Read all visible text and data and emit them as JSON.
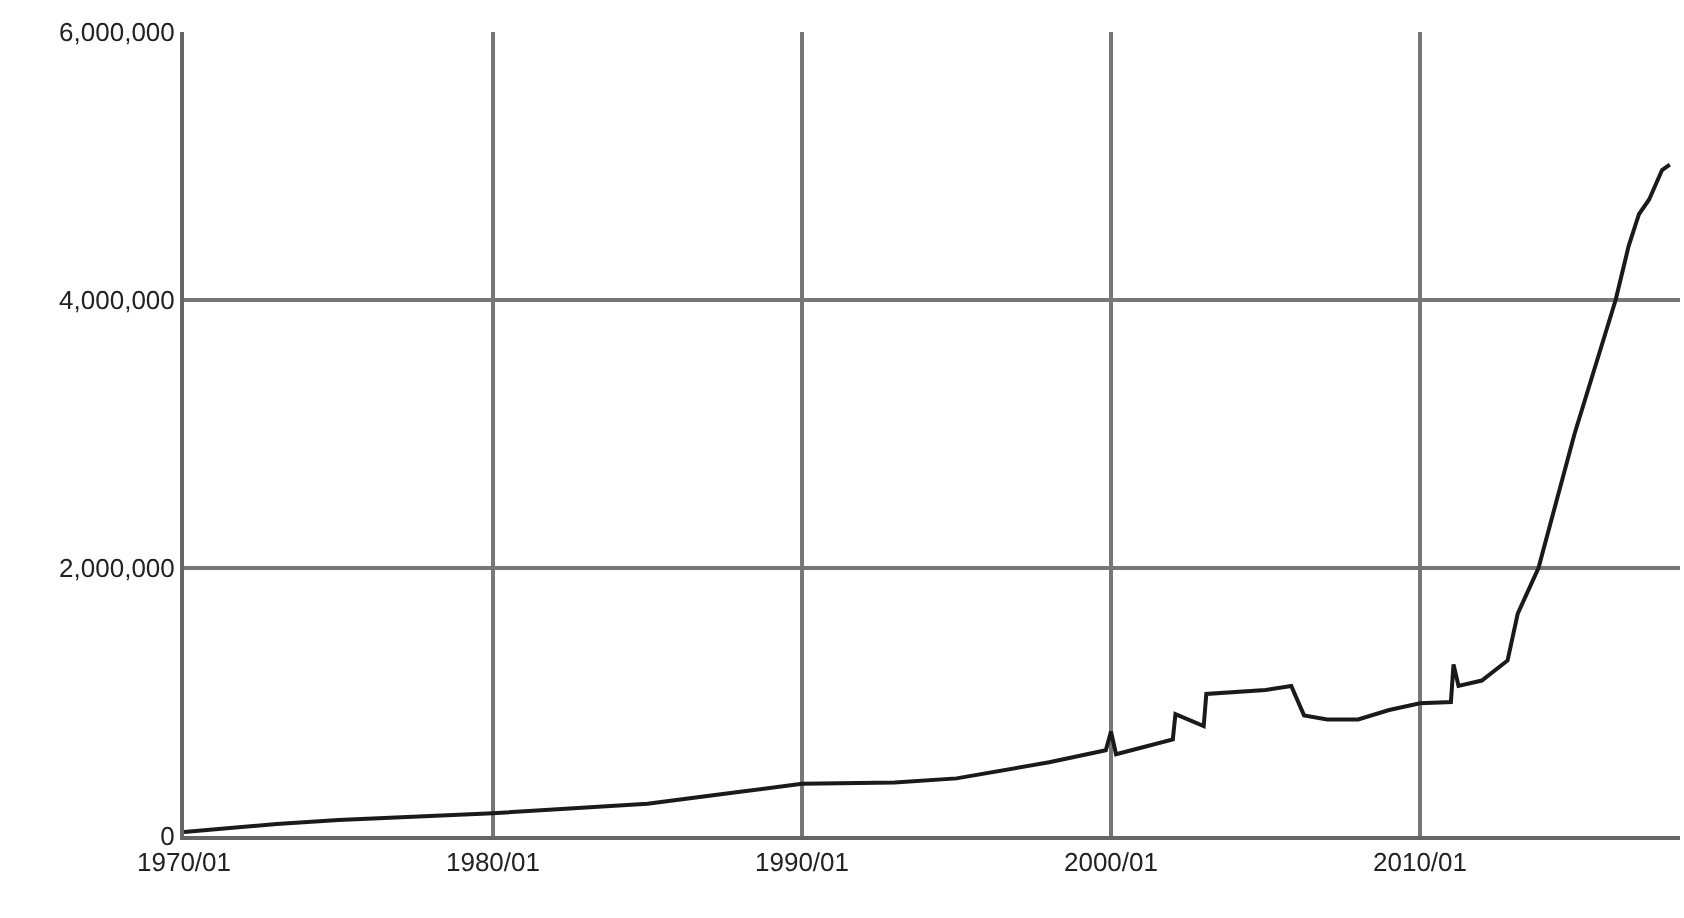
{
  "chart_data": {
    "type": "line",
    "x": [
      "1970-01",
      "1973-01",
      "1975-01",
      "1980-01",
      "1985-01",
      "1988-01",
      "1990-01",
      "1993-01",
      "1995-01",
      "1998-01",
      "1999-11",
      "2000-01",
      "2000-03",
      "2001-01",
      "2002-01",
      "2002-02",
      "2003-01",
      "2003-02",
      "2005-01",
      "2005-11",
      "2006-04",
      "2007-01",
      "2008-01",
      "2009-01",
      "2010-01",
      "2011-01",
      "2011-02",
      "2011-04",
      "2012-01",
      "2012-11",
      "2013-03",
      "2013-11",
      "2015-01",
      "2016-05",
      "2016-10",
      "2017-02",
      "2017-06",
      "2017-11",
      "2018-02"
    ],
    "series": [
      {
        "color": "#1a1a1a",
        "values": [
          30000,
          90000,
          120000,
          170000,
          240000,
          330000,
          390000,
          400000,
          430000,
          550000,
          640000,
          780000,
          610000,
          660000,
          720000,
          910000,
          820000,
          1060000,
          1090000,
          1120000,
          900000,
          870000,
          870000,
          940000,
          990000,
          1000000,
          1280000,
          1120000,
          1160000,
          1310000,
          1660000,
          2000000,
          3000000,
          4000000,
          4400000,
          4640000,
          4750000,
          4970000,
          5010000
        ]
      }
    ],
    "xlim": [
      "1970-01",
      "2018-06"
    ],
    "xticks": [
      {
        "value": "1970-01",
        "label": "1970/01"
      },
      {
        "value": "1980-01",
        "label": "1980/01"
      },
      {
        "value": "1990-01",
        "label": "1990/01"
      },
      {
        "value": "2000-01",
        "label": "2000/01"
      },
      {
        "value": "2010-01",
        "label": "2010/01"
      }
    ],
    "ylim": [
      0,
      6000000
    ],
    "yticks": [
      {
        "value": 0,
        "label": "0"
      },
      {
        "value": 2000000,
        "label": "2,000,000"
      },
      {
        "value": 4000000,
        "label": "4,000,000"
      },
      {
        "value": 6000000,
        "label": "6,000,000"
      }
    ],
    "grid": true,
    "marker": "none",
    "line_style": "solid"
  }
}
